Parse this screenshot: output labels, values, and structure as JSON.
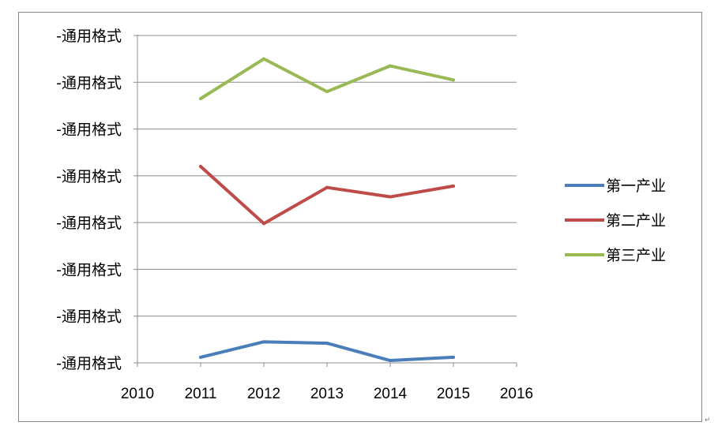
{
  "chart_data": {
    "type": "line",
    "x_ticks": [
      "2010",
      "2011",
      "2012",
      "2013",
      "2014",
      "2015",
      "2016"
    ],
    "x": [
      2011,
      2012,
      2013,
      2014,
      2015
    ],
    "xlim": [
      2010,
      2016
    ],
    "y_tick_labels": [
      "-通用格式",
      "-通用格式",
      "-通用格式",
      "-通用格式",
      "-通用格式",
      "-通用格式",
      "-通用格式",
      "-通用格式"
    ],
    "ylim": [
      0,
      7
    ],
    "grid": true,
    "legend_position": "right",
    "series": [
      {
        "name": "第一产业",
        "color": "#4a7ebb",
        "values": [
          0.12,
          0.45,
          0.42,
          0.05,
          0.12
        ]
      },
      {
        "name": "第二产业",
        "color": "#be4b48",
        "values": [
          4.2,
          2.98,
          3.75,
          3.55,
          3.78
        ]
      },
      {
        "name": "第三产业",
        "color": "#98b954",
        "values": [
          5.65,
          6.5,
          5.8,
          6.35,
          6.05
        ]
      }
    ]
  },
  "corner_mark": "↵"
}
